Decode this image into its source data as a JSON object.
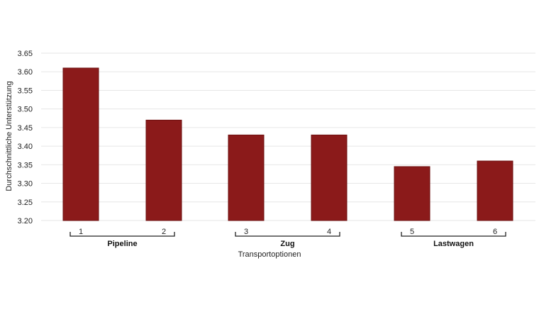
{
  "chart_data": {
    "type": "bar",
    "categories": [
      "1",
      "2",
      "3",
      "4",
      "5",
      "6"
    ],
    "values": [
      3.61,
      3.47,
      3.43,
      3.43,
      3.345,
      3.36
    ],
    "groups": [
      {
        "label": "Pipeline",
        "categories": [
          "1",
          "2"
        ]
      },
      {
        "label": "Zug",
        "categories": [
          "3",
          "4"
        ]
      },
      {
        "label": "Lastwagen",
        "categories": [
          "5",
          "6"
        ]
      }
    ],
    "xlabel": "Transportoptionen",
    "ylabel": "Durchschnittliche Unterstützung",
    "ylim": [
      3.2,
      3.65
    ],
    "yticks": [
      "3.20",
      "3.25",
      "3.30",
      "3.35",
      "3.40",
      "3.45",
      "3.50",
      "3.55",
      "3.60",
      "3.65"
    ],
    "bar_color": "#8b1a1a",
    "bar_edge_color": "#6e1010",
    "grid": true
  }
}
